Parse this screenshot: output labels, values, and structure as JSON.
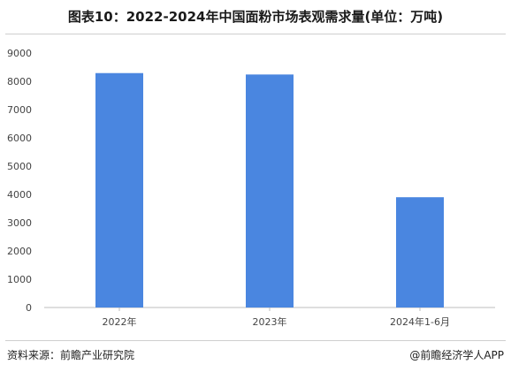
{
  "chart_data": {
    "type": "bar",
    "title": "图表10：2022-2024年中国面粉市场表观需求量(单位：万吨)",
    "categories": [
      "2022年",
      "2023年",
      "2024年1-6月"
    ],
    "values": [
      8290,
      8240,
      3900
    ],
    "ylim": [
      0,
      9000
    ],
    "yticks": [
      "0",
      "1000",
      "2000",
      "3000",
      "4000",
      "5000",
      "6000",
      "7000",
      "8000",
      "9000"
    ],
    "bar_color": "#4a86e0",
    "grid": false,
    "legend": "none"
  },
  "footer": {
    "source": "资料来源：前瞻产业研究院",
    "credit": "@前瞻经济学人APP"
  }
}
